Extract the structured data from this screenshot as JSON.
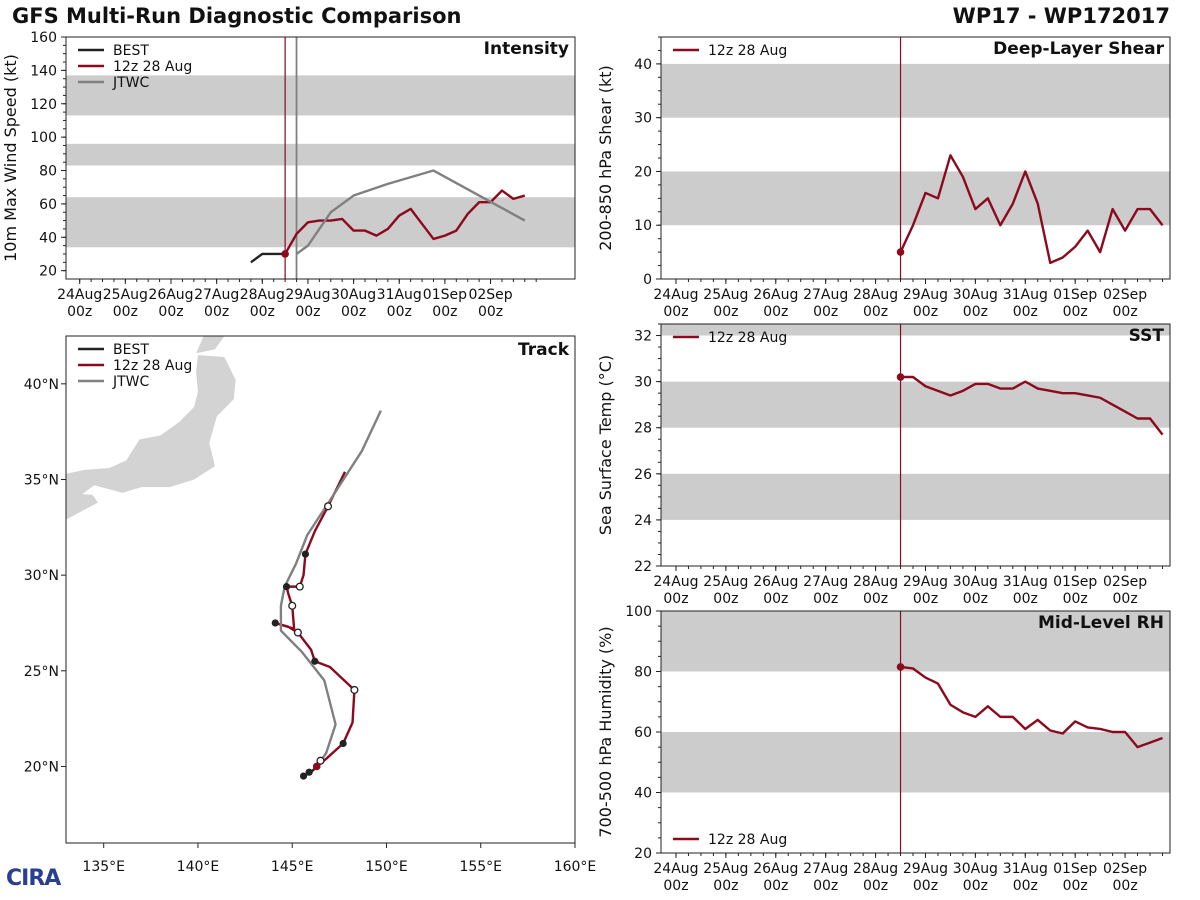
{
  "header": {
    "title": "GFS Multi-Run Diagnostic Comparison",
    "storm": "WP17 - WP172017"
  },
  "logo": {
    "text": "CIRA"
  },
  "time_ticks": [
    "24Aug\n00z",
    "25Aug\n00z",
    "26Aug\n00z",
    "27Aug\n00z",
    "28Aug\n00z",
    "29Aug\n00z",
    "30Aug\n00z",
    "31Aug\n00z",
    "01Sep\n00z",
    "02Sep\n00z"
  ],
  "colors": {
    "best": "#222222",
    "run": "#8b0a1e",
    "jtwc": "#808080",
    "band": "#cccccc",
    "land": "#d3d3d3"
  },
  "chart_data": [
    {
      "id": "intensity",
      "type": "line",
      "title": "Intensity",
      "ylabel": "10m Max Wind Speed (kt)",
      "xlim": [
        -0.3,
        10.85
      ],
      "ylim": [
        15,
        160
      ],
      "yticks": [
        20,
        40,
        60,
        80,
        100,
        120,
        140,
        160
      ],
      "bands": [
        [
          34,
          64
        ],
        [
          83,
          96
        ],
        [
          113,
          137
        ]
      ],
      "init_x": 4.5,
      "jtwc_x": 4.75,
      "legend": [
        "BEST",
        "12z 28 Aug",
        "JTWC"
      ],
      "series": [
        {
          "name": "BEST",
          "color_key": "best",
          "points": [
            [
              3.75,
              25
            ],
            [
              4.0,
              30
            ],
            [
              4.25,
              30
            ],
            [
              4.5,
              30
            ]
          ]
        },
        {
          "name": "12z 28 Aug",
          "color_key": "run",
          "marker_first": true,
          "points": [
            [
              4.5,
              30
            ],
            [
              4.75,
              42
            ],
            [
              5.0,
              49
            ],
            [
              5.25,
              50
            ],
            [
              5.5,
              50
            ],
            [
              5.75,
              51
            ],
            [
              6.0,
              44
            ],
            [
              6.25,
              44
            ],
            [
              6.5,
              41
            ],
            [
              6.75,
              45
            ],
            [
              7.0,
              53
            ],
            [
              7.25,
              57
            ],
            [
              7.5,
              48
            ],
            [
              7.75,
              39
            ],
            [
              8.0,
              41
            ],
            [
              8.25,
              44
            ],
            [
              8.5,
              54
            ],
            [
              8.75,
              61
            ],
            [
              9.0,
              61
            ],
            [
              9.25,
              68
            ],
            [
              9.5,
              63
            ],
            [
              9.75,
              65
            ]
          ]
        },
        {
          "name": "JTWC",
          "color_key": "jtwc",
          "points": [
            [
              4.75,
              30
            ],
            [
              5.0,
              35
            ],
            [
              5.25,
              45
            ],
            [
              5.5,
              55
            ],
            [
              6.0,
              65
            ],
            [
              6.75,
              72
            ],
            [
              7.75,
              80
            ],
            [
              8.75,
              65
            ],
            [
              9.75,
              50
            ]
          ]
        }
      ]
    },
    {
      "id": "shear",
      "type": "line",
      "title": "Deep-Layer Shear",
      "ylabel": "200-850 hPa Shear (kt)",
      "xlim": [
        -0.3,
        9.9
      ],
      "ylim": [
        0,
        45
      ],
      "yticks": [
        0,
        10,
        20,
        30,
        40
      ],
      "bands": [
        [
          10,
          20
        ],
        [
          30,
          40
        ]
      ],
      "init_x": 4.5,
      "legend": [
        "12z 28 Aug"
      ],
      "series": [
        {
          "name": "12z 28 Aug",
          "color_key": "run",
          "marker_first": true,
          "points": [
            [
              4.5,
              5
            ],
            [
              4.75,
              10
            ],
            [
              5.0,
              16
            ],
            [
              5.25,
              15
            ],
            [
              5.5,
              23
            ],
            [
              5.75,
              19
            ],
            [
              6.0,
              13
            ],
            [
              6.25,
              15
            ],
            [
              6.5,
              10
            ],
            [
              6.75,
              14
            ],
            [
              7.0,
              20
            ],
            [
              7.25,
              14
            ],
            [
              7.5,
              3
            ],
            [
              7.75,
              4
            ],
            [
              8.0,
              6
            ],
            [
              8.25,
              9
            ],
            [
              8.5,
              5
            ],
            [
              8.75,
              13
            ],
            [
              9.0,
              9
            ],
            [
              9.25,
              13
            ],
            [
              9.5,
              13
            ],
            [
              9.75,
              10
            ]
          ]
        }
      ]
    },
    {
      "id": "sst",
      "type": "line",
      "title": "SST",
      "ylabel": "Sea Surface Temp (°C)",
      "xlim": [
        -0.3,
        9.9
      ],
      "ylim": [
        22,
        32.5
      ],
      "yticks": [
        22,
        24,
        26,
        28,
        30,
        32
      ],
      "bands": [
        [
          24,
          26
        ],
        [
          28,
          30
        ],
        [
          32,
          32.5
        ]
      ],
      "init_x": 4.5,
      "legend": [
        "12z 28 Aug"
      ],
      "series": [
        {
          "name": "12z 28 Aug",
          "color_key": "run",
          "marker_first": true,
          "points": [
            [
              4.5,
              30.2
            ],
            [
              4.75,
              30.2
            ],
            [
              5.0,
              29.8
            ],
            [
              5.25,
              29.6
            ],
            [
              5.5,
              29.4
            ],
            [
              5.75,
              29.6
            ],
            [
              6.0,
              29.9
            ],
            [
              6.25,
              29.9
            ],
            [
              6.5,
              29.7
            ],
            [
              6.75,
              29.7
            ],
            [
              7.0,
              30.0
            ],
            [
              7.25,
              29.7
            ],
            [
              7.5,
              29.6
            ],
            [
              7.75,
              29.5
            ],
            [
              8.0,
              29.5
            ],
            [
              8.25,
              29.4
            ],
            [
              8.5,
              29.3
            ],
            [
              8.75,
              29.0
            ],
            [
              9.0,
              28.7
            ],
            [
              9.25,
              28.4
            ],
            [
              9.5,
              28.4
            ],
            [
              9.75,
              27.7
            ]
          ]
        }
      ]
    },
    {
      "id": "rh",
      "type": "line",
      "title": "Mid-Level RH",
      "ylabel": "700-500 hPa Humidity (%)",
      "xlim": [
        -0.3,
        9.9
      ],
      "ylim": [
        20,
        100
      ],
      "yticks": [
        20,
        40,
        60,
        80,
        100
      ],
      "bands": [
        [
          40,
          60
        ],
        [
          80,
          100
        ]
      ],
      "init_x": 4.5,
      "legend": [
        "12z 28 Aug"
      ],
      "series": [
        {
          "name": "12z 28 Aug",
          "color_key": "run",
          "marker_first": true,
          "points": [
            [
              4.5,
              81.5
            ],
            [
              4.75,
              81
            ],
            [
              5.0,
              78
            ],
            [
              5.25,
              76
            ],
            [
              5.5,
              69
            ],
            [
              5.75,
              66.5
            ],
            [
              6.0,
              65
            ],
            [
              6.25,
              68.5
            ],
            [
              6.5,
              65
            ],
            [
              6.75,
              65
            ],
            [
              7.0,
              61
            ],
            [
              7.25,
              64
            ],
            [
              7.5,
              60.5
            ],
            [
              7.75,
              59.5
            ],
            [
              8.0,
              63.5
            ],
            [
              8.25,
              61.5
            ],
            [
              8.5,
              61
            ],
            [
              8.75,
              60
            ],
            [
              9.0,
              60
            ],
            [
              9.25,
              55
            ],
            [
              9.5,
              56.5
            ],
            [
              9.75,
              58
            ]
          ]
        }
      ]
    },
    {
      "id": "track",
      "type": "map",
      "title": "Track",
      "lon_range": [
        133.0,
        160.0
      ],
      "lat_range": [
        16.0,
        42.5
      ],
      "lon_ticks": [
        135,
        140,
        145,
        150,
        155,
        160
      ],
      "lon_tick_labels": [
        "135°E",
        "140°E",
        "145°E",
        "150°E",
        "155°E",
        "160°E"
      ],
      "lat_ticks": [
        20,
        25,
        30,
        35,
        40
      ],
      "lat_tick_labels": [
        "20°N",
        "25°N",
        "30°N",
        "35°N",
        "40°N"
      ],
      "legend": [
        "BEST",
        "12z 28 Aug",
        "JTWC"
      ],
      "series": [
        {
          "name": "BEST",
          "color_key": "best",
          "points": [
            [
              145.6,
              19.5
            ],
            [
              145.8,
              19.6
            ],
            [
              146.0,
              19.7
            ],
            [
              146.3,
              20.0
            ]
          ]
        },
        {
          "name": "12z 28 Aug",
          "color_key": "run",
          "points": [
            [
              146.3,
              20.0
            ],
            [
              146.8,
              20.4
            ],
            [
              147.7,
              21.2
            ],
            [
              148.2,
              22.3
            ],
            [
              148.3,
              24.0
            ],
            [
              147.0,
              25.2
            ],
            [
              146.2,
              25.5
            ],
            [
              146.0,
              26.1
            ],
            [
              145.3,
              27.0
            ],
            [
              144.8,
              27.3
            ],
            [
              144.1,
              27.5
            ],
            [
              145.1,
              27.2
            ],
            [
              145.0,
              28.4
            ],
            [
              144.8,
              29.0
            ],
            [
              144.7,
              29.4
            ],
            [
              145.4,
              29.4
            ],
            [
              145.6,
              30.0
            ],
            [
              145.7,
              31.1
            ],
            [
              146.2,
              32.3
            ],
            [
              146.9,
              33.6
            ],
            [
              147.6,
              35.0
            ],
            [
              147.8,
              35.4
            ]
          ]
        },
        {
          "name": "JTWC",
          "color_key": "jtwc",
          "points": [
            [
              146.3,
              20.0
            ],
            [
              146.8,
              20.7
            ],
            [
              147.3,
              22.2
            ],
            [
              146.7,
              24.5
            ],
            [
              145.5,
              26.0
            ],
            [
              144.4,
              27.1
            ],
            [
              144.4,
              28.4
            ],
            [
              144.6,
              29.4
            ],
            [
              145.2,
              30.6
            ],
            [
              145.8,
              32.1
            ],
            [
              146.8,
              33.6
            ],
            [
              148.7,
              36.5
            ],
            [
              149.7,
              38.6
            ]
          ]
        }
      ],
      "markers_filled": [
        [
          145.6,
          19.5
        ],
        [
          145.9,
          19.7
        ],
        [
          146.3,
          20.0
        ],
        [
          147.7,
          21.2
        ],
        [
          146.2,
          25.5
        ],
        [
          144.1,
          27.5
        ],
        [
          144.7,
          29.4
        ],
        [
          145.7,
          31.1
        ]
      ],
      "markers_open": [
        [
          146.5,
          20.3
        ],
        [
          148.3,
          24.0
        ],
        [
          145.3,
          27.0
        ],
        [
          145.0,
          28.4
        ],
        [
          145.4,
          29.4
        ],
        [
          146.9,
          33.6
        ]
      ]
    }
  ]
}
